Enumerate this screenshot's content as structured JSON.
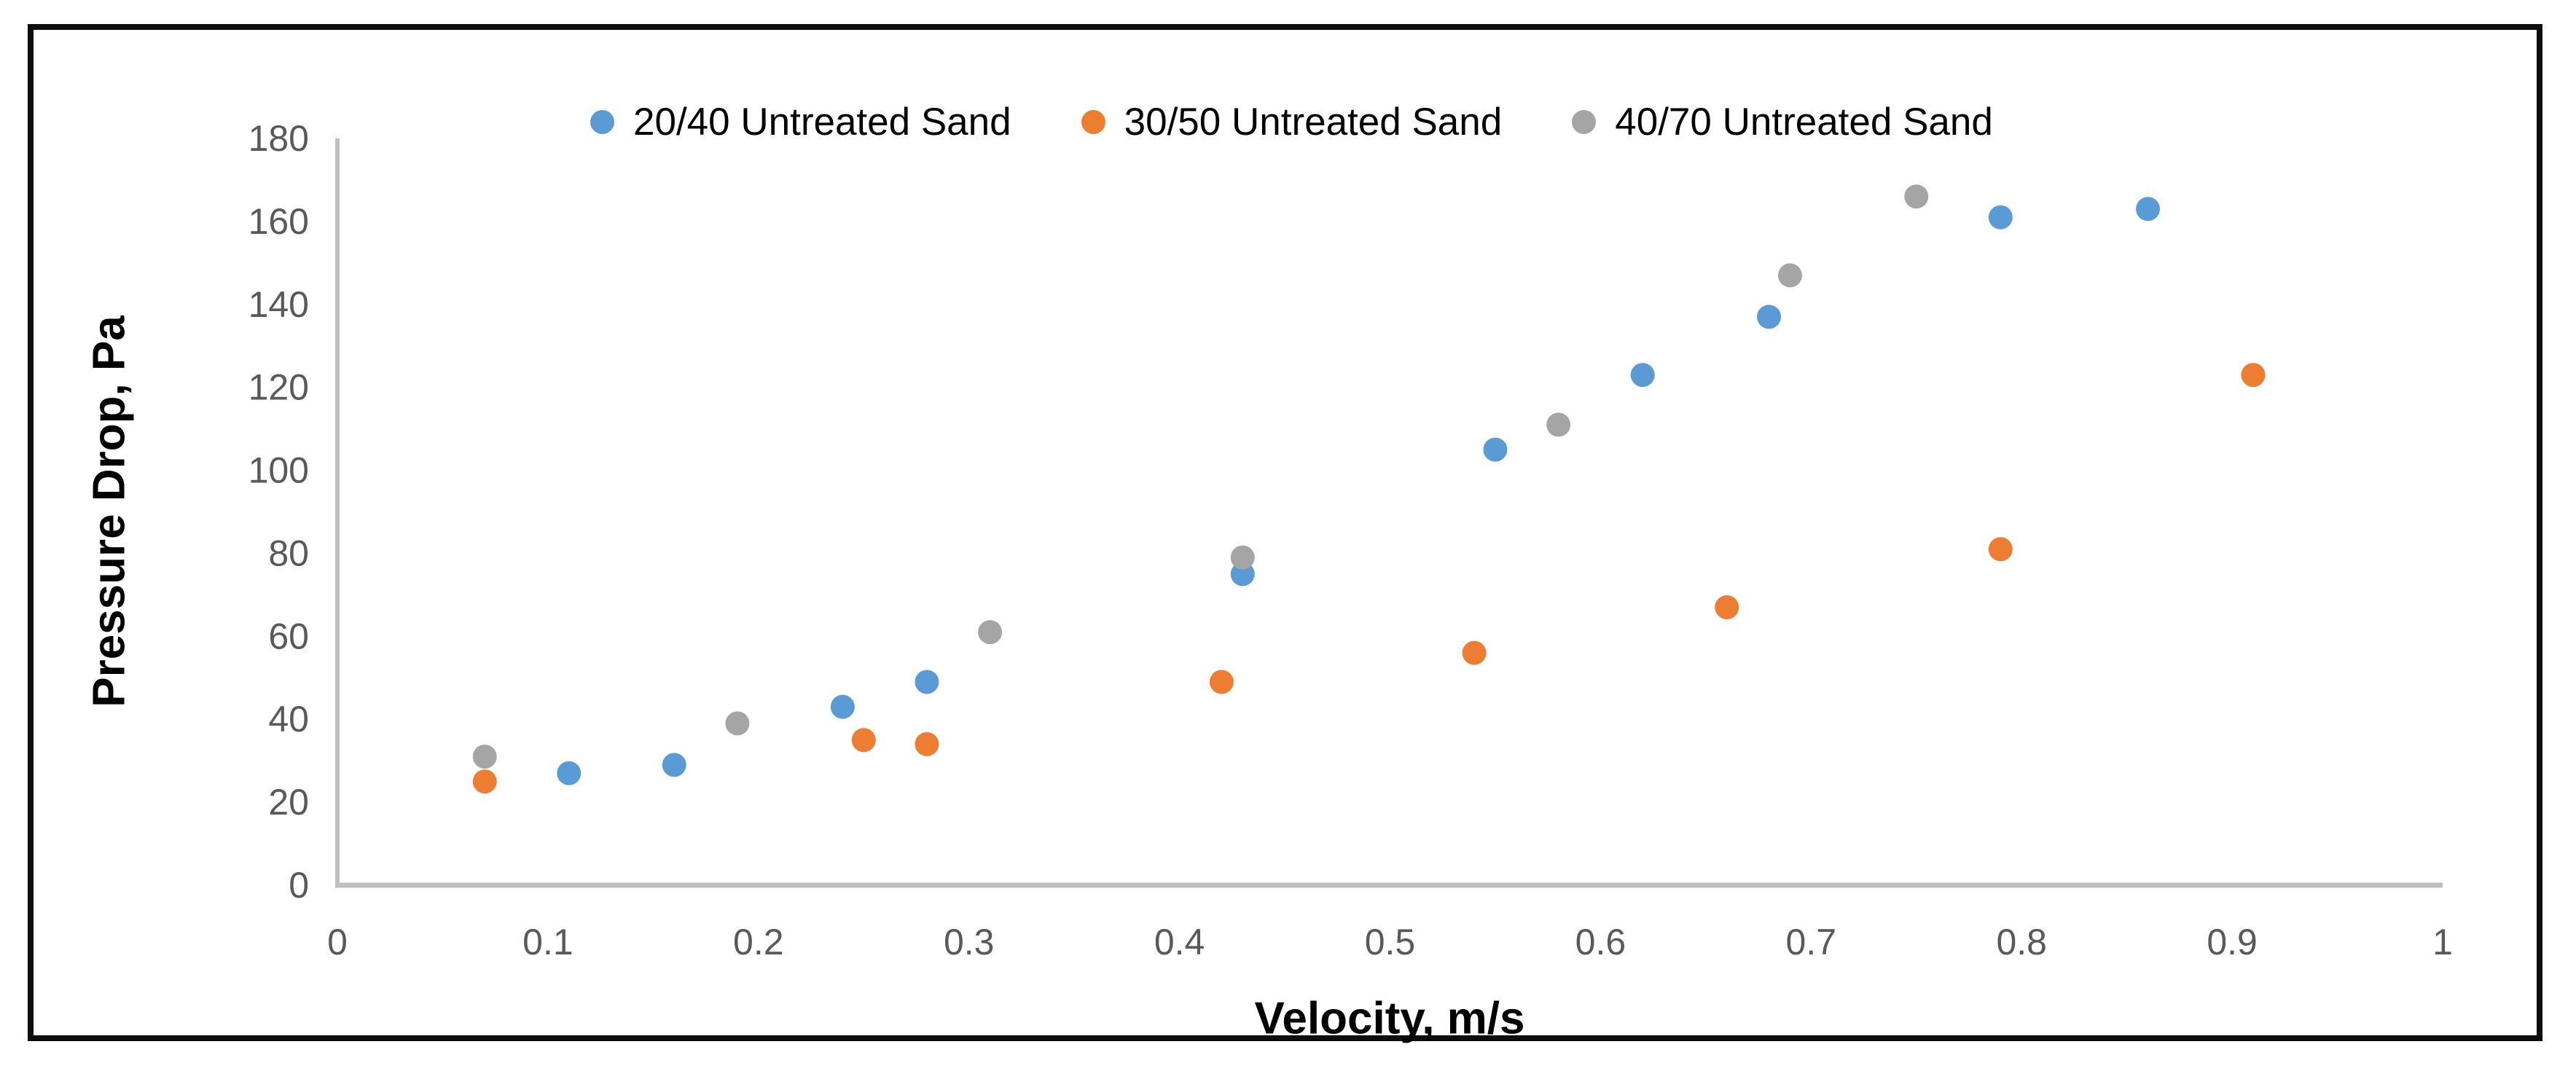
{
  "chart_data": {
    "type": "scatter",
    "title": "",
    "xlabel": "Velocity, m/s",
    "ylabel": "Pressure Drop, Pa",
    "xlim": [
      0,
      1
    ],
    "ylim": [
      0,
      180
    ],
    "grid": false,
    "legend_position": "top-center",
    "x_ticks": {
      "values": [
        0,
        0.1,
        0.2,
        0.3,
        0.4,
        0.5,
        0.6,
        0.7,
        0.8,
        0.9,
        1
      ],
      "labels": [
        "0",
        "0.1",
        "0.2",
        "0.3",
        "0.4",
        "0.5",
        "0.6",
        "0.7",
        "0.8",
        "0.9",
        "1"
      ]
    },
    "y_ticks": {
      "values": [
        0,
        20,
        40,
        60,
        80,
        100,
        120,
        140,
        160,
        180
      ],
      "labels": [
        "0",
        "20",
        "40",
        "60",
        "80",
        "100",
        "120",
        "140",
        "160",
        "180"
      ]
    },
    "series": [
      {
        "name": "20/40 Untreated Sand",
        "color": "#5B9BD5",
        "points": [
          [
            0.11,
            27
          ],
          [
            0.16,
            29
          ],
          [
            0.24,
            43
          ],
          [
            0.28,
            49
          ],
          [
            0.43,
            75
          ],
          [
            0.55,
            105
          ],
          [
            0.62,
            123
          ],
          [
            0.68,
            137
          ],
          [
            0.79,
            161
          ],
          [
            0.86,
            163
          ]
        ]
      },
      {
        "name": "30/50 Untreated Sand",
        "color": "#ED7D31",
        "points": [
          [
            0.07,
            25
          ],
          [
            0.25,
            35
          ],
          [
            0.28,
            34
          ],
          [
            0.42,
            49
          ],
          [
            0.54,
            56
          ],
          [
            0.66,
            67
          ],
          [
            0.79,
            81
          ],
          [
            0.91,
            123
          ]
        ]
      },
      {
        "name": "40/70 Untreated Sand",
        "color": "#A5A5A5",
        "points": [
          [
            0.07,
            31
          ],
          [
            0.19,
            39
          ],
          [
            0.31,
            61
          ],
          [
            0.43,
            79
          ],
          [
            0.58,
            111
          ],
          [
            0.69,
            147
          ],
          [
            0.75,
            166
          ]
        ]
      }
    ]
  },
  "colors": {
    "axis_line": "#BFBFBF",
    "tick_label": "#595959",
    "frame_border": "#0D0D0D",
    "background": "#FFFFFF"
  }
}
